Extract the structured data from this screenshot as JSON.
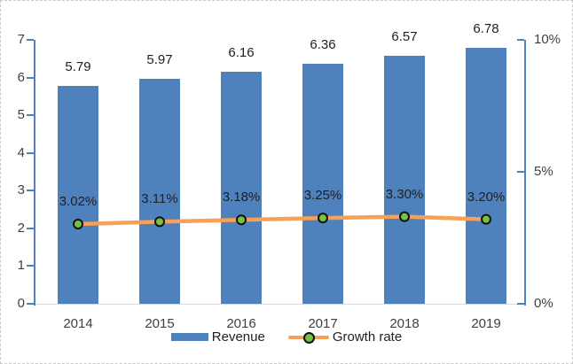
{
  "chart_data": {
    "type": "bar",
    "title": "",
    "categories": [
      "2014",
      "2015",
      "2016",
      "2017",
      "2018",
      "2019"
    ],
    "series": [
      {
        "name": "Revenue",
        "type": "bar",
        "axis": "left",
        "color": "#4F81BD",
        "values": [
          5.79,
          5.97,
          6.16,
          6.36,
          6.57,
          6.78
        ],
        "labels": [
          "5.79",
          "5.97",
          "6.16",
          "6.36",
          "6.57",
          "6.78"
        ]
      },
      {
        "name": "Growth rate",
        "type": "line",
        "axis": "right",
        "line_color": "#F8A055",
        "marker_fill": "#77C144",
        "marker_stroke": "#111111",
        "values": [
          3.02,
          3.11,
          3.18,
          3.25,
          3.3,
          3.2
        ],
        "labels": [
          "3.02%",
          "3.11%",
          "3.18%",
          "3.25%",
          "3.30%",
          "3.20%"
        ]
      }
    ],
    "left_axis": {
      "min": 0,
      "max": 7,
      "tick_values": [
        0,
        1,
        2,
        3,
        4,
        5,
        6,
        7
      ],
      "tick_labels": [
        "0",
        "1",
        "2",
        "3",
        "4",
        "5",
        "6",
        "7"
      ]
    },
    "right_axis": {
      "min": 0,
      "max": 10,
      "tick_values": [
        0,
        5,
        10
      ],
      "tick_labels": [
        "0%",
        "5%",
        "10%"
      ]
    },
    "legend": {
      "position": "bottom"
    },
    "grid": false,
    "colors": {
      "axis_line": "#4F81BD",
      "x_axis_line": "#D9D9D9",
      "label_text": "#1F1F1F",
      "tick_text": "#3F3F3F"
    }
  }
}
